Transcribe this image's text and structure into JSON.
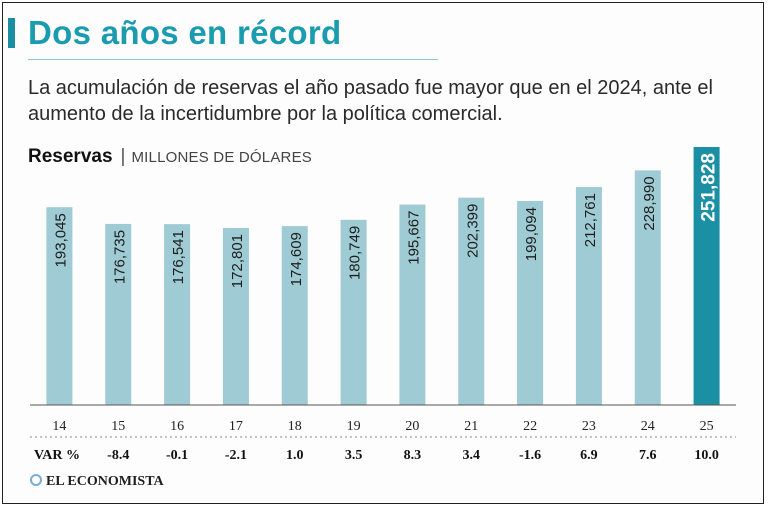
{
  "title": "Dos años en récord",
  "subtitle": "La acumulación de reservas el año pasado fue mayor que en el 2024, ante el aumento de la incertidumbre por la política comercial.",
  "series_name": "Reservas",
  "separator": "|",
  "unit": "MILLONES DE DÓLARES",
  "var_label": "VAR %",
  "logo": "EL ECONOMISTA",
  "colors": {
    "bar": "#9ecbd4",
    "highlight_bar": "#1b8fa3",
    "title": "#1a9bb0",
    "label": "#1d1d1d",
    "highlight_label": "#ffffff"
  },
  "chart_data": {
    "type": "bar",
    "categories": [
      "14",
      "15",
      "16",
      "17",
      "18",
      "19",
      "20",
      "21",
      "22",
      "23",
      "24",
      "25"
    ],
    "values": [
      193045,
      176735,
      176541,
      172801,
      174609,
      180749,
      195667,
      202399,
      199094,
      212761,
      228990,
      251828
    ],
    "value_labels": [
      "193,045",
      "176,735",
      "176,541",
      "172,801",
      "174,609",
      "180,749",
      "195,667",
      "202,399",
      "199,094",
      "212,761",
      "228,990",
      "251,828"
    ],
    "var_pct": [
      "",
      "-8.4",
      "-0.1",
      "-2.1",
      "1.0",
      "3.5",
      "8.3",
      "3.4",
      "-1.6",
      "6.9",
      "7.6",
      "10.0"
    ],
    "highlight_index": 11,
    "ylim": [
      0,
      251828
    ],
    "grid": false,
    "legend": "none"
  }
}
